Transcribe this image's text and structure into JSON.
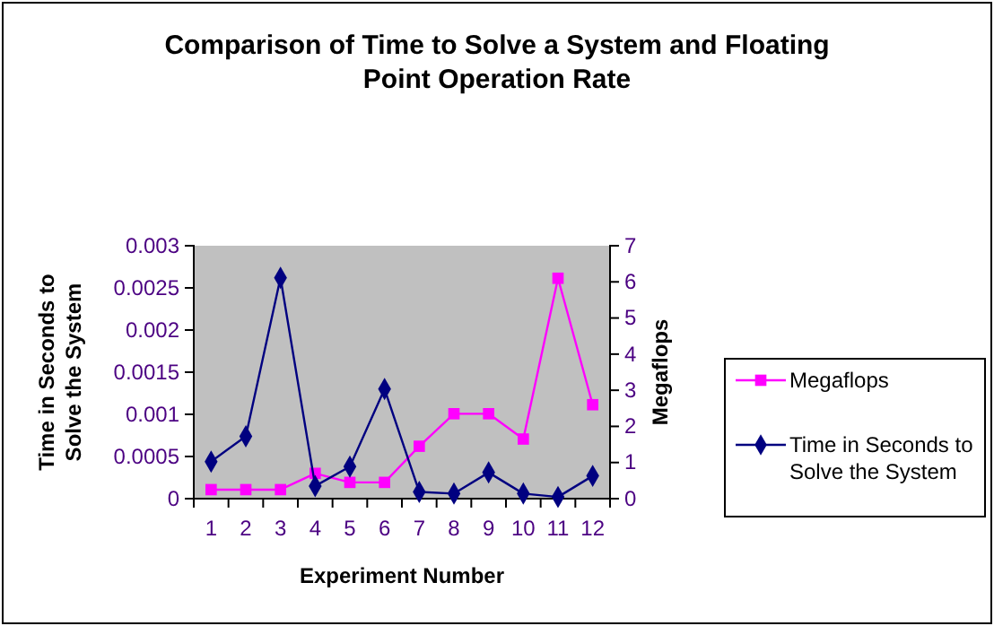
{
  "chart_data": {
    "type": "line",
    "title": "Comparison of Time to Solve a System and Floating Point Operation Rate",
    "xlabel": "Experiment Number",
    "ylabel": "Time in Seconds to Solve the System",
    "y2label": "Megaflops",
    "categories": [
      "1",
      "2",
      "3",
      "4",
      "5",
      "6",
      "7",
      "8",
      "9",
      "10",
      "11",
      "12"
    ],
    "series": [
      {
        "name": "Megaflops",
        "color": "#ff00ff",
        "axis": "y2",
        "marker": "square",
        "values": [
          0.25,
          0.25,
          0.25,
          0.7,
          0.45,
          0.45,
          1.45,
          2.35,
          2.35,
          1.65,
          6.1,
          2.6
        ]
      },
      {
        "name": "Time in Seconds to Solve the System",
        "color": "#000080",
        "marker": "diamond",
        "values": [
          0.00044,
          0.00074,
          0.00262,
          0.00015,
          0.00038,
          0.0013,
          8e-05,
          6e-05,
          0.00031,
          6e-05,
          2e-05,
          0.00027
        ]
      }
    ],
    "ylim": [
      0,
      0.003
    ],
    "yticks": [
      0,
      0.0005,
      0.001,
      0.0015,
      0.002,
      0.0025,
      0.003
    ],
    "y2lim": [
      0,
      7
    ],
    "y2ticks": [
      0,
      1,
      2,
      3,
      4,
      5,
      6,
      7
    ],
    "grid": false,
    "legend": "right"
  }
}
